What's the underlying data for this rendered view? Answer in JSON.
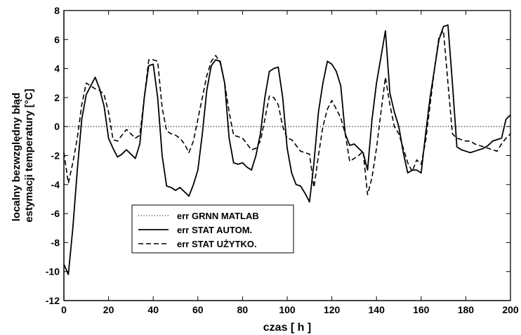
{
  "chart_data": {
    "type": "line",
    "title": "",
    "xlabel": "czas [ h ]",
    "ylabel_lines": [
      "localny bezwzględny błąd",
      "estymacji temperatury [°C]"
    ],
    "xlim": [
      0,
      200
    ],
    "ylim": [
      -12,
      8
    ],
    "xticks": [
      0,
      20,
      40,
      60,
      80,
      100,
      120,
      140,
      160,
      180,
      200
    ],
    "yticks": [
      -12,
      -10,
      -8,
      -6,
      -4,
      -2,
      0,
      2,
      4,
      6,
      8
    ],
    "grid": false,
    "legend_position": "lower-left",
    "colors": {
      "line": "#000000",
      "background": "#ffffff"
    },
    "x": [
      0,
      2,
      4,
      6,
      8,
      10,
      12,
      14,
      16,
      18,
      20,
      22,
      24,
      26,
      28,
      30,
      32,
      34,
      36,
      38,
      40,
      42,
      44,
      46,
      48,
      50,
      52,
      54,
      56,
      58,
      60,
      62,
      64,
      66,
      68,
      70,
      72,
      74,
      76,
      78,
      80,
      82,
      84,
      86,
      88,
      90,
      92,
      94,
      96,
      98,
      100,
      102,
      104,
      106,
      108,
      110,
      112,
      114,
      116,
      118,
      120,
      122,
      124,
      126,
      128,
      130,
      132,
      134,
      136,
      138,
      140,
      142,
      144,
      146,
      148,
      150,
      152,
      154,
      156,
      158,
      160,
      162,
      164,
      166,
      168,
      170,
      172,
      174,
      176,
      178,
      180,
      182,
      184,
      186,
      188,
      190,
      192,
      194,
      196,
      198,
      200
    ],
    "series": [
      {
        "name": "err GRNN MATLAB",
        "style": "dotted",
        "values": [
          0,
          0,
          0,
          0,
          0,
          0,
          0,
          0,
          0,
          0,
          0,
          0,
          0,
          0,
          0,
          0,
          0,
          0,
          0,
          0,
          0,
          0,
          0,
          0,
          0,
          0,
          0,
          0,
          0,
          0,
          0,
          0,
          0,
          0,
          0,
          0,
          0,
          0,
          0,
          0,
          0,
          0,
          0,
          0,
          0,
          0,
          0,
          0,
          0,
          0,
          0,
          0,
          0,
          0,
          0,
          0,
          0,
          0,
          0,
          0,
          0,
          0,
          0,
          0,
          0,
          0,
          0,
          0,
          0,
          0,
          0,
          0,
          0,
          0,
          0,
          0,
          0,
          0,
          0,
          0,
          0,
          0,
          0,
          0,
          0,
          0,
          0,
          0,
          0,
          0,
          0,
          0,
          0,
          0,
          0,
          0,
          0,
          0,
          0,
          0,
          0
        ]
      },
      {
        "name": "err STAT AUTOM.",
        "style": "solid",
        "values": [
          -9.5,
          -10.2,
          -7.0,
          -3.0,
          0.5,
          2.2,
          2.8,
          3.4,
          2.6,
          1.4,
          -0.8,
          -1.5,
          -2.1,
          -1.9,
          -1.6,
          -1.9,
          -2.2,
          -1.2,
          2.0,
          4.2,
          4.3,
          2.0,
          -2.0,
          -4.1,
          -4.2,
          -4.4,
          -4.2,
          -4.5,
          -4.8,
          -4.0,
          -3.0,
          -0.5,
          2.5,
          4.2,
          4.6,
          4.5,
          3.0,
          -0.8,
          -2.5,
          -2.6,
          -2.5,
          -2.8,
          -3.0,
          -2.0,
          -0.5,
          2.0,
          3.8,
          4.0,
          4.1,
          2.0,
          -1.5,
          -3.2,
          -4.0,
          -4.1,
          -4.6,
          -5.2,
          -2.5,
          1.0,
          3.0,
          4.5,
          4.3,
          3.8,
          2.8,
          -0.5,
          -1.3,
          -1.2,
          -1.5,
          -1.8,
          -3.0,
          0.5,
          3.0,
          4.8,
          6.6,
          2.3,
          1.0,
          0.0,
          -1.8,
          -3.2,
          -3.0,
          -3.0,
          -3.2,
          -0.5,
          2.0,
          4.0,
          6.0,
          6.9,
          7.0,
          3.0,
          -1.4,
          -1.6,
          -1.7,
          -1.8,
          -1.7,
          -1.6,
          -1.5,
          -1.3,
          -1.0,
          -0.9,
          -0.8,
          0.5,
          0.8
        ]
      },
      {
        "name": "err STAT UŻYTKO.",
        "style": "dashed",
        "values": [
          -1.8,
          -3.9,
          -2.5,
          -0.8,
          1.5,
          3.0,
          2.8,
          2.6,
          2.5,
          2.2,
          1.0,
          -0.9,
          -1.0,
          -0.6,
          -0.2,
          -0.5,
          -0.8,
          -0.6,
          2.0,
          4.6,
          4.6,
          4.5,
          1.3,
          -0.3,
          -0.5,
          -0.6,
          -0.8,
          -1.2,
          -1.8,
          -1.0,
          0.5,
          2.0,
          3.5,
          4.5,
          4.9,
          4.4,
          3.0,
          1.0,
          -0.6,
          -0.7,
          -0.8,
          -1.2,
          -1.6,
          -1.5,
          -1.0,
          0.5,
          2.1,
          2.0,
          1.5,
          0.0,
          -0.8,
          -0.9,
          -1.3,
          -1.7,
          -1.8,
          -1.9,
          -4.2,
          -2.0,
          0.0,
          1.2,
          1.8,
          1.2,
          0.6,
          -0.5,
          -2.4,
          -2.2,
          -2.0,
          -1.7,
          -4.7,
          -3.5,
          -1.5,
          1.0,
          3.4,
          1.5,
          0.0,
          -0.5,
          -1.5,
          -2.5,
          -3.1,
          -2.3,
          -2.6,
          -1.0,
          1.5,
          4.0,
          6.2,
          6.6,
          3.0,
          -0.5,
          -0.8,
          -0.9,
          -1.0,
          -1.0,
          -1.2,
          -1.3,
          -1.4,
          -1.5,
          -1.6,
          -1.7,
          -1.2,
          -0.8,
          -0.5
        ]
      }
    ]
  }
}
